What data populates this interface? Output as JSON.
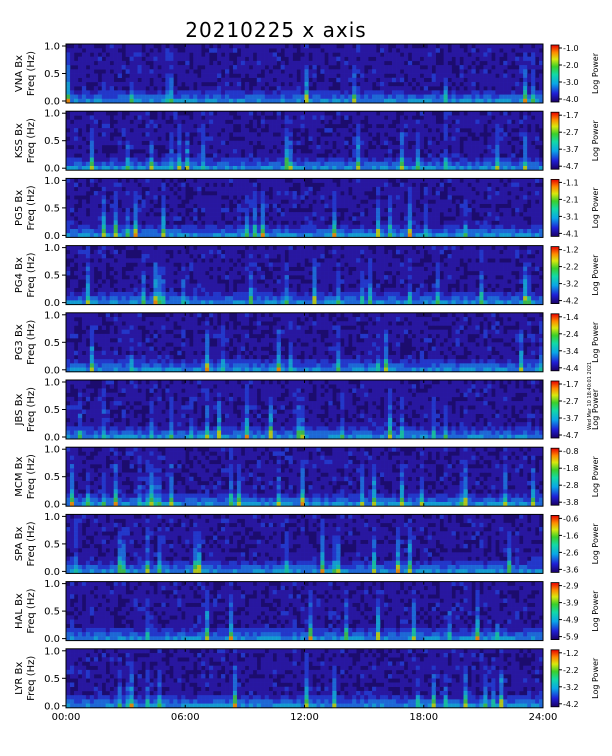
{
  "title": "20210225 x axis",
  "credit": "Wed Mar 10 18:40:01 2021",
  "chart_data": {
    "type": "heatmap",
    "title": "20210225 x axis",
    "xlabel": "",
    "x_range_hours": [
      0,
      24
    ],
    "x_ticks": [
      "00:00",
      "06:00",
      "12:00",
      "18:00",
      "24:00"
    ],
    "y_range_hz": [
      0,
      1
    ],
    "y_ticks": [
      "0.0",
      "0.5",
      "1.0"
    ],
    "colorbar_label": "Log Power",
    "panels": [
      {
        "station": "VNA",
        "component": "Bx",
        "ylabel": "VNA Bx",
        "ylabel2": "Freq (Hz)",
        "cbar_ticks": [
          "-1.0",
          "-2.0",
          "-3.0",
          "-4.0"
        ]
      },
      {
        "station": "KSS",
        "component": "Bx",
        "ylabel": "KSS Bx",
        "ylabel2": "Freq (Hz)",
        "cbar_ticks": [
          "-1.7",
          "-2.7",
          "-3.7",
          "-4.7"
        ]
      },
      {
        "station": "PG5",
        "component": "Bx",
        "ylabel": "PG5 Bx",
        "ylabel2": "Freq (Hz)",
        "cbar_ticks": [
          "-1.1",
          "-2.1",
          "-3.1",
          "-4.1"
        ]
      },
      {
        "station": "PG4",
        "component": "Bx",
        "ylabel": "PG4 Bx",
        "ylabel2": "Freq (Hz)",
        "cbar_ticks": [
          "-1.2",
          "-2.2",
          "-3.2",
          "-4.2"
        ]
      },
      {
        "station": "PG3",
        "component": "Bx",
        "ylabel": "PG3 Bx",
        "ylabel2": "Freq (Hz)",
        "cbar_ticks": [
          "-1.4",
          "-2.4",
          "-3.4",
          "-4.4"
        ]
      },
      {
        "station": "JBS",
        "component": "Bx",
        "ylabel": "JBS Bx",
        "ylabel2": "Freq (Hz)",
        "cbar_ticks": [
          "-1.7",
          "-2.7",
          "-3.7",
          "-4.7"
        ]
      },
      {
        "station": "MCM",
        "component": "Bx",
        "ylabel": "MCM Bx",
        "ylabel2": "Freq (Hz)",
        "cbar_ticks": [
          "-0.8",
          "-1.8",
          "-2.8",
          "-3.8"
        ]
      },
      {
        "station": "SPA",
        "component": "Bx",
        "ylabel": "SPA Bx",
        "ylabel2": "Freq (Hz)",
        "cbar_ticks": [
          "-0.6",
          "-1.6",
          "-2.6",
          "-3.6"
        ]
      },
      {
        "station": "HAL",
        "component": "Bx",
        "ylabel": "HAL Bx",
        "ylabel2": "Freq (Hz)",
        "cbar_ticks": [
          "-2.9",
          "-3.9",
          "-4.9",
          "-5.9"
        ]
      },
      {
        "station": "LYR",
        "component": "Bx",
        "ylabel": "LYR Bx",
        "ylabel2": "Freq (Hz)",
        "cbar_ticks": [
          "-1.2",
          "-2.2",
          "-3.2",
          "-4.2"
        ]
      }
    ]
  }
}
